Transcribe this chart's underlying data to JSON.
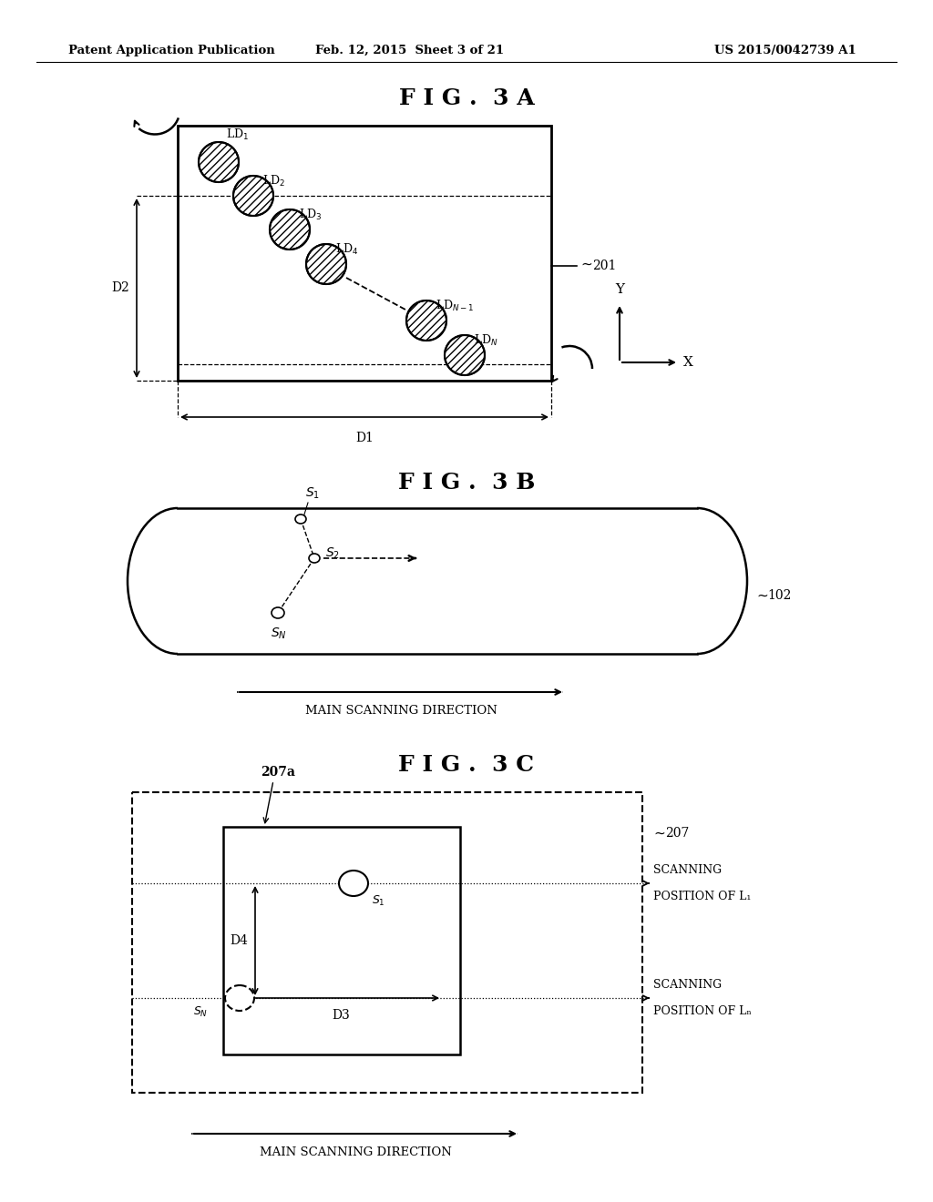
{
  "bg_color": "#ffffff",
  "header_left": "Patent Application Publication",
  "header_mid": "Feb. 12, 2015  Sheet 3 of 21",
  "header_right": "US 2015/0042739 A1",
  "fig3a_title": "F I G .  3 A",
  "fig3b_title": "F I G .  3 B",
  "fig3c_title": "F I G .  3 C",
  "label_201": "201",
  "label_102": "102",
  "label_207": "207",
  "label_207a": "207a",
  "label_D1": "D1",
  "label_D2": "D2",
  "label_D3": "D3",
  "label_D4": "D4",
  "main_scanning_direction": "MAIN SCANNING DIRECTION",
  "scanning_L1_line1": "SCANNING",
  "scanning_L1_line2": "POSITION OF L",
  "scanning_LN_line1": "SCANNING",
  "scanning_LN_line2": "POSITION OF L"
}
